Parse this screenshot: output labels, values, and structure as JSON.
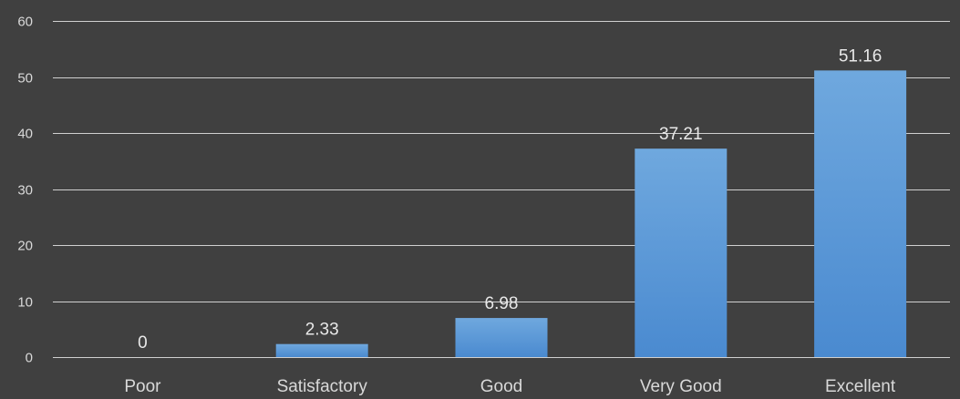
{
  "chart_data": {
    "type": "bar",
    "title": "",
    "xlabel": "",
    "ylabel": "",
    "categories": [
      "Poor",
      "Satisfactory",
      "Good",
      "Very Good",
      "Excellent"
    ],
    "values": [
      0,
      2.33,
      6.98,
      37.21,
      51.16
    ],
    "data_labels": [
      "0",
      "2.33",
      "6.98",
      "37.21",
      "51.16"
    ],
    "ylim": [
      0,
      60
    ],
    "y_ticks": [
      0,
      10,
      20,
      30,
      40,
      50,
      60
    ],
    "grid": true,
    "legend": "none",
    "colors": {
      "background": "#404040",
      "bar_top": "#6fa8de",
      "bar_bottom": "#4a8ad0",
      "grid": "#d0d0d0",
      "text": "#d9d9d9"
    }
  }
}
